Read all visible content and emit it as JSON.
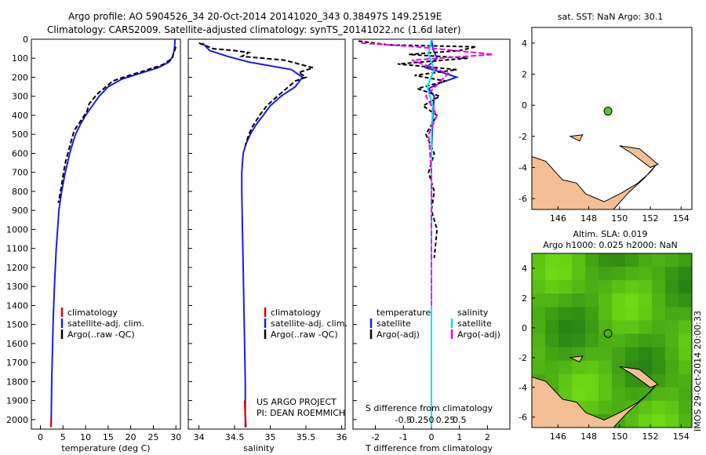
{
  "header": {
    "line1": "Argo profile: AO 5904526_34 20-Oct-2014 20141020_343 0.38497S 149.2519E",
    "line2": "Climatology: CARS2009. Satellite-adjusted climatology: synTS_20141022.nc (1.6d later)"
  },
  "colors": {
    "climatology": "#dd0000",
    "satellite": "#1a1aee",
    "argo": "#000000",
    "sal_satellite": "#00e5ee",
    "sal_argo": "#ee00ee",
    "land": "#f4bf94",
    "sst_marker": "#55cc22"
  },
  "credit": {
    "line1": "US ARGO PROJECT",
    "line2": "PI: DEAN ROEMMICH",
    "stamp": "IMOS 29-Oct-2014 20:00:33"
  },
  "chart_data": [
    {
      "type": "line",
      "name": "temperature-profile",
      "xlabel": "temperature (deg C)",
      "ylabel": "",
      "xticks": [
        0,
        5,
        10,
        15,
        20,
        25,
        30
      ],
      "xlim": [
        -2,
        31
      ],
      "ylim": [
        2050,
        0
      ],
      "yticks": [
        0,
        100,
        200,
        300,
        400,
        500,
        600,
        700,
        800,
        900,
        1000,
        1100,
        1200,
        1300,
        1400,
        1500,
        1600,
        1700,
        1800,
        1900,
        2000
      ],
      "legend": [
        "climatology",
        "satellite-adj. clim.",
        "Argo(..raw -QC)"
      ],
      "series": [
        {
          "name": "satellite-adj. clim.",
          "x": [
            29.8,
            29.7,
            29.3,
            28.5,
            26.0,
            22.0,
            18.0,
            15.0,
            13.0,
            11.5,
            10.0,
            8.8,
            7.8,
            7.1,
            6.5,
            6.0,
            5.5,
            5.1,
            4.7,
            4.4,
            4.1,
            3.8,
            3.5,
            3.3,
            3.1,
            2.95,
            2.8,
            2.7,
            2.6,
            2.5,
            2.45,
            2.4,
            2.35
          ],
          "y": [
            0,
            50,
            90,
            120,
            150,
            180,
            210,
            250,
            300,
            350,
            400,
            450,
            500,
            550,
            600,
            650,
            700,
            750,
            800,
            850,
            900,
            1000,
            1100,
            1200,
            1300,
            1400,
            1500,
            1600,
            1700,
            1800,
            1900,
            2000,
            2040
          ]
        },
        {
          "name": "climatology",
          "x": [
            2.4,
            2.35
          ],
          "y": [
            1990,
            2040
          ]
        },
        {
          "name": "Argo(..raw -QC)",
          "x": [
            30.0,
            29.4,
            29.2,
            28.0,
            27.0,
            25.0,
            22.5,
            19.0,
            16.0,
            15.0,
            12.5,
            10.8,
            10.3,
            8.9,
            7.5,
            7.0,
            6.3,
            5.6,
            5.2,
            5.0,
            4.6,
            4.3,
            4.0
          ],
          "y": [
            40,
            80,
            100,
            120,
            135,
            150,
            170,
            195,
            220,
            240,
            290,
            340,
            380,
            430,
            480,
            520,
            580,
            640,
            690,
            720,
            780,
            820,
            860
          ]
        }
      ]
    },
    {
      "type": "line",
      "name": "salinity-profile",
      "xlabel": "salinity",
      "xticks": [
        34,
        34.5,
        35,
        35.5,
        36
      ],
      "xlim": [
        33.85,
        36.05
      ],
      "ylim": [
        2050,
        0
      ],
      "legend": [
        "climatology",
        "satellite-adj. clim.",
        "Argo(..raw -QC)"
      ],
      "series": [
        {
          "name": "satellite-adj. clim.",
          "x": [
            34.05,
            34.15,
            34.4,
            34.7,
            35.0,
            35.3,
            35.45,
            35.35,
            35.15,
            35.0,
            34.9,
            34.8,
            34.72,
            34.66,
            34.62,
            34.6,
            34.6,
            34.61,
            34.62,
            34.63,
            34.64,
            34.65,
            34.65
          ],
          "y": [
            20,
            60,
            90,
            120,
            140,
            160,
            200,
            250,
            300,
            350,
            400,
            450,
            500,
            550,
            600,
            700,
            800,
            1000,
            1200,
            1400,
            1600,
            1800,
            2040
          ]
        },
        {
          "name": "climatology",
          "x": [
            34.64,
            34.65,
            34.66
          ],
          "y": [
            1900,
            1980,
            2040
          ]
        },
        {
          "name": "Argo(..raw -QC)",
          "x": [
            34.0,
            34.2,
            34.5,
            34.7,
            34.6,
            35.2,
            35.6,
            35.4,
            35.5,
            35.35,
            35.1,
            34.95,
            34.85,
            34.75,
            34.7,
            34.65
          ],
          "y": [
            20,
            50,
            60,
            70,
            90,
            110,
            150,
            175,
            200,
            220,
            300,
            350,
            400,
            460,
            500,
            560
          ]
        }
      ]
    },
    {
      "type": "line",
      "name": "difference-from-climatology",
      "xlabel": "T difference from climatology",
      "xlabel2": "S difference from climatology",
      "xticks": [
        -2,
        -1,
        0,
        1,
        2
      ],
      "xticks2": [
        "-0.5",
        "-0.25",
        "0",
        "0.25",
        "0.5"
      ],
      "xlim": [
        -2.8,
        2.8
      ],
      "ylim": [
        2050,
        0
      ],
      "legend": {
        "col1_title": "temperature",
        "col2_title": "salinity",
        "items": [
          "satellite",
          "Argo(-adj)",
          "satellite",
          "Argo(-adj)"
        ]
      },
      "series": [
        {
          "name": "temperature satellite",
          "x": [
            0,
            0.05,
            0.2,
            -0.2,
            0.5,
            0.9,
            0.3,
            -0.1,
            0.1,
            0.05,
            0,
            0,
            0
          ],
          "y": [
            0,
            50,
            100,
            150,
            180,
            200,
            230,
            260,
            300,
            400,
            600,
            1000,
            2040
          ]
        },
        {
          "name": "temperature Argo(-adj)",
          "x": [
            -2.6,
            -1.5,
            1.6,
            1.0,
            -0.8,
            1.3,
            -1.2,
            0.9,
            -0.6,
            0.5,
            -0.5,
            0.3,
            -0.3,
            0.2,
            -0.2,
            0.1,
            -0.1,
            0.1,
            0,
            0.2,
            0.1
          ],
          "y": [
            10,
            30,
            40,
            60,
            80,
            100,
            130,
            160,
            190,
            220,
            260,
            300,
            350,
            400,
            500,
            600,
            700,
            800,
            900,
            1000,
            1150
          ]
        },
        {
          "name": "salinity satellite",
          "x": [
            0,
            -0.1,
            0.1,
            -0.15,
            0.05,
            0,
            0,
            0
          ],
          "y": [
            0,
            80,
            160,
            250,
            350,
            500,
            1000,
            2040
          ]
        },
        {
          "name": "salinity Argo(-adj)",
          "x": [
            -2.5,
            -0.5,
            2.2,
            -0.7,
            0.6,
            -0.2,
            0.2,
            -0.1,
            0,
            0,
            0
          ],
          "y": [
            20,
            40,
            80,
            110,
            180,
            300,
            400,
            500,
            700,
            1000,
            1400
          ]
        }
      ]
    },
    {
      "type": "scatter",
      "name": "sst-map",
      "title": "sat. SST: NaN Argo: 30.1",
      "xticks": [
        146,
        148,
        150,
        152,
        154
      ],
      "yticks": [
        4,
        2,
        0,
        -2,
        -4,
        -6
      ],
      "xlim": [
        144.3,
        154.7
      ],
      "ylim": [
        -6.7,
        5
      ],
      "point": {
        "lon": 149.25,
        "lat": -0.38
      }
    },
    {
      "type": "heatmap",
      "name": "sla-map",
      "title1": "Altim. SLA: 0.019",
      "title2": "Argo h1000: 0.025 h2000: NaN",
      "xticks": [
        146,
        148,
        150,
        152,
        154
      ],
      "yticks": [
        4,
        2,
        0,
        -2,
        -4,
        -6
      ],
      "xlim": [
        144.3,
        154.7
      ],
      "ylim": [
        -6.7,
        5
      ],
      "point": {
        "lon": 149.25,
        "lat": -0.38
      }
    }
  ]
}
